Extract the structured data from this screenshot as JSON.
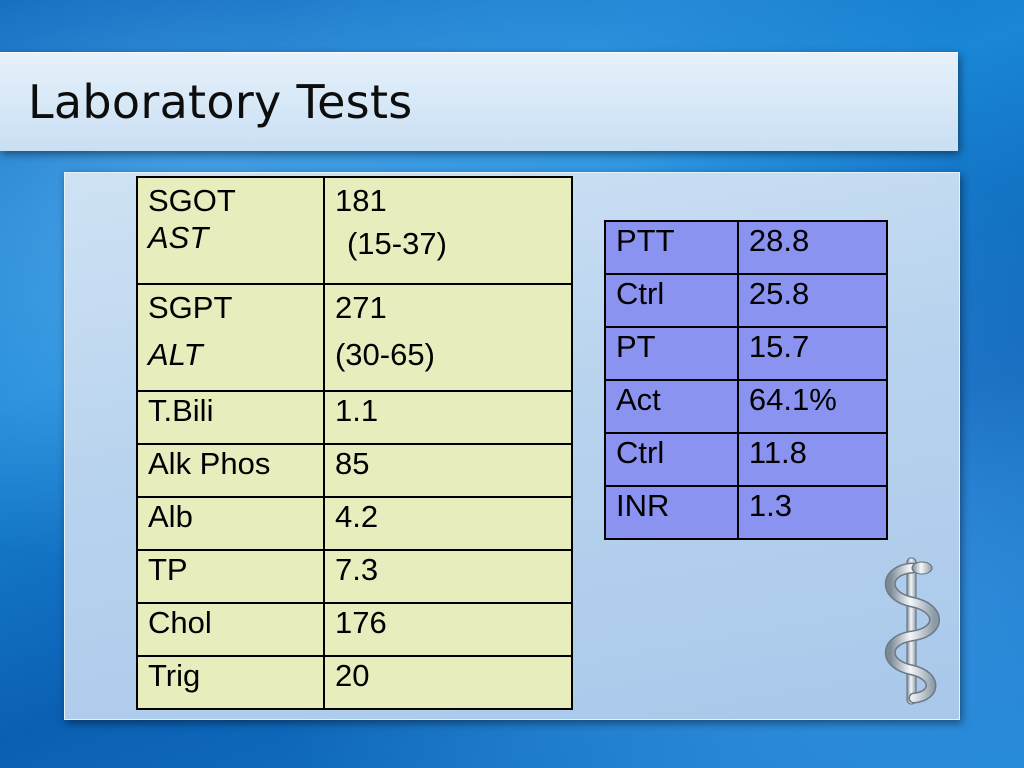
{
  "title": "Laboratory Tests",
  "liver_panel": {
    "rows": [
      {
        "name": "SGOT",
        "alias": "AST",
        "value": "181",
        "range": "(15-37)"
      },
      {
        "name": "SGPT",
        "alias": "ALT",
        "value": "271",
        "range": "(30-65)"
      },
      {
        "name": "T.Bili",
        "value": "1.1"
      },
      {
        "name": "Alk Phos",
        "value": "85"
      },
      {
        "name": "Alb",
        "value": "4.2"
      },
      {
        "name": "TP",
        "value": "7.3"
      },
      {
        "name": "Chol",
        "value": "176"
      },
      {
        "name": "Trig",
        "value": "20"
      }
    ],
    "background": "#e7edbd"
  },
  "coag_panel": {
    "rows": [
      {
        "name": "PTT",
        "value": "28.8"
      },
      {
        "name": "Ctrl",
        "value": "25.8"
      },
      {
        "name": "PT",
        "value": "15.7"
      },
      {
        "name": "Act",
        "value": "64.1%"
      },
      {
        "name": "Ctrl",
        "value": "11.8"
      },
      {
        "name": "INR",
        "value": "1.3"
      }
    ],
    "background": "#8b93f1"
  },
  "decoration_icon": "caduceus-icon"
}
